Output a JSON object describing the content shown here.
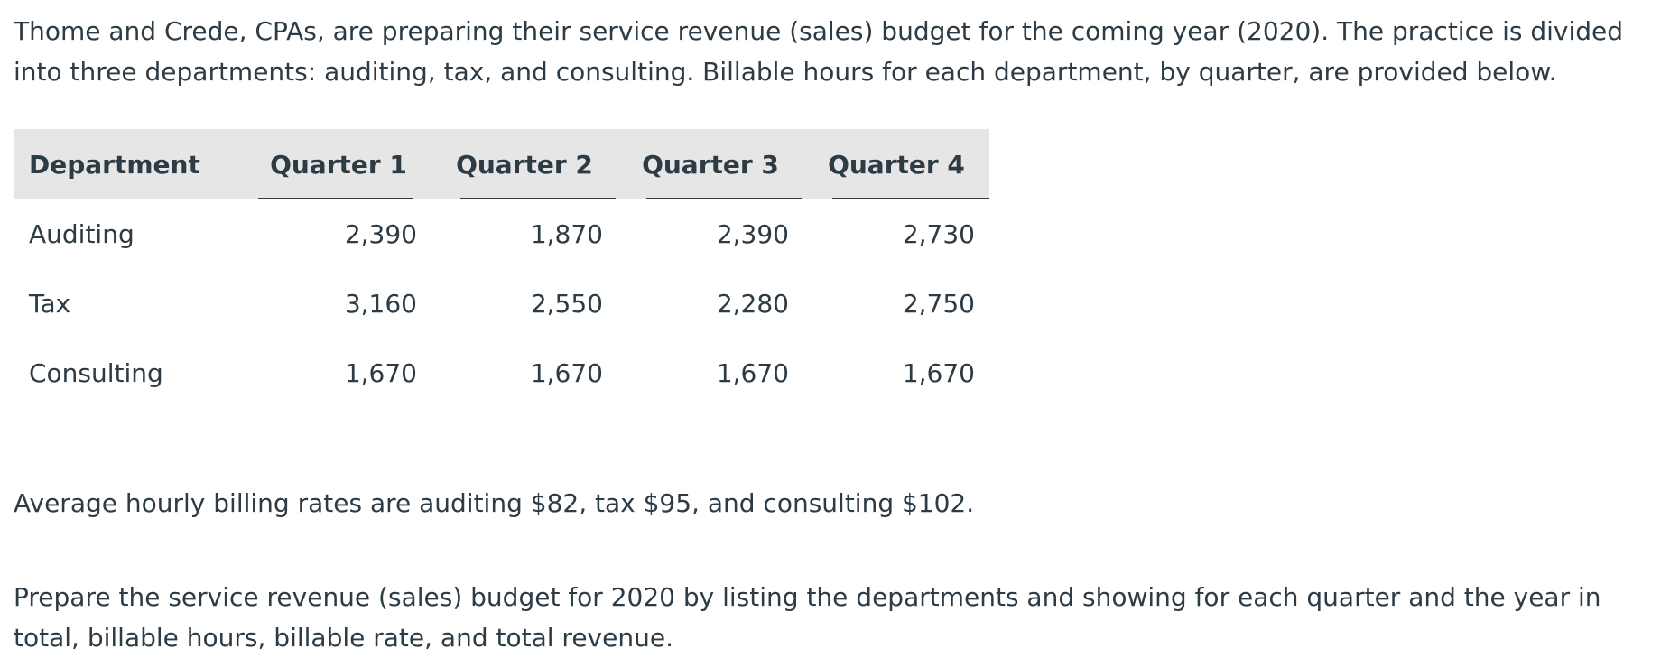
{
  "intro_text": "Thome and Crede, CPAs, are preparing their service revenue (sales) budget for the coming year (2020). The practice is divided into three departments: auditing, tax, and consulting. Billable hours for each department, by quarter, are provided below.",
  "table": {
    "headers": [
      "Department",
      "Quarter 1",
      "Quarter 2",
      "Quarter 3",
      "Quarter 4"
    ],
    "rows": [
      {
        "department": "Auditing",
        "values": [
          "2,390",
          "1,870",
          "2,390",
          "2,730"
        ]
      },
      {
        "department": "Tax",
        "values": [
          "3,160",
          "2,550",
          "2,280",
          "2,750"
        ]
      },
      {
        "department": "Consulting",
        "values": [
          "1,670",
          "1,670",
          "1,670",
          "1,670"
        ]
      }
    ]
  },
  "rates_text": "Average hourly billing rates are auditing $82, tax $95, and consulting $102.",
  "instruction_text": "Prepare the service revenue (sales) budget for 2020 by listing the departments and showing for each quarter and the year in total, billable hours, billable rate, and total revenue."
}
